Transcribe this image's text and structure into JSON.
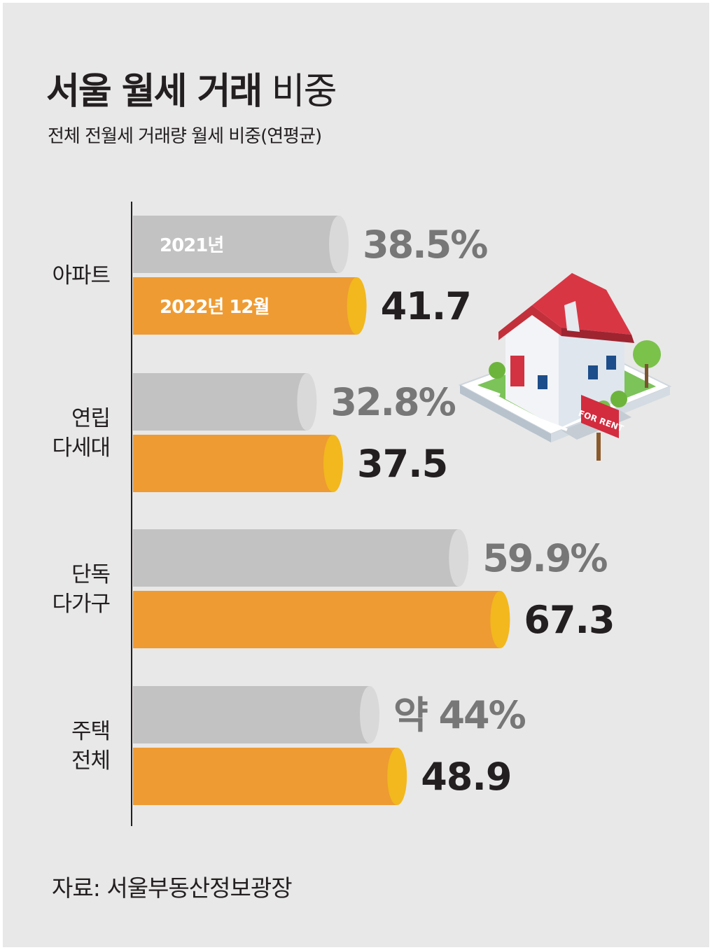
{
  "title_bold": "서울 월세 거래",
  "title_light": "비중",
  "subtitle": "전체 전월세 거래량 월세 비중(연평균)",
  "source": "자료: 서울부동산정보광장",
  "sign_text": "FOR RENT",
  "colors": {
    "background": "#e8e8e8",
    "bar_prev": "#c2c2c2",
    "bar_prev_cap": "#d9d9d9",
    "bar_cur": "#ee9b33",
    "bar_cur_cap": "#f2b81e"
  },
  "chart_data": {
    "type": "bar",
    "orientation": "horizontal",
    "categories": [
      [
        "아파트"
      ],
      [
        "연립",
        "다세대"
      ],
      [
        "단독",
        "다가구"
      ],
      [
        "주택",
        "전체"
      ]
    ],
    "series": [
      {
        "name": "2021년",
        "values": [
          38.5,
          32.8,
          59.9,
          44
        ],
        "labels": [
          "38.5%",
          "32.8%",
          "59.9%",
          "약 44%"
        ]
      },
      {
        "name": "2022년 12월",
        "values": [
          41.7,
          37.5,
          67.3,
          48.9
        ],
        "labels": [
          "41.7",
          "37.5",
          "67.3",
          "48.9"
        ]
      }
    ],
    "unit": "%",
    "xlim": [
      0,
      100
    ],
    "grid": false,
    "legend": "inside-first-bars"
  }
}
